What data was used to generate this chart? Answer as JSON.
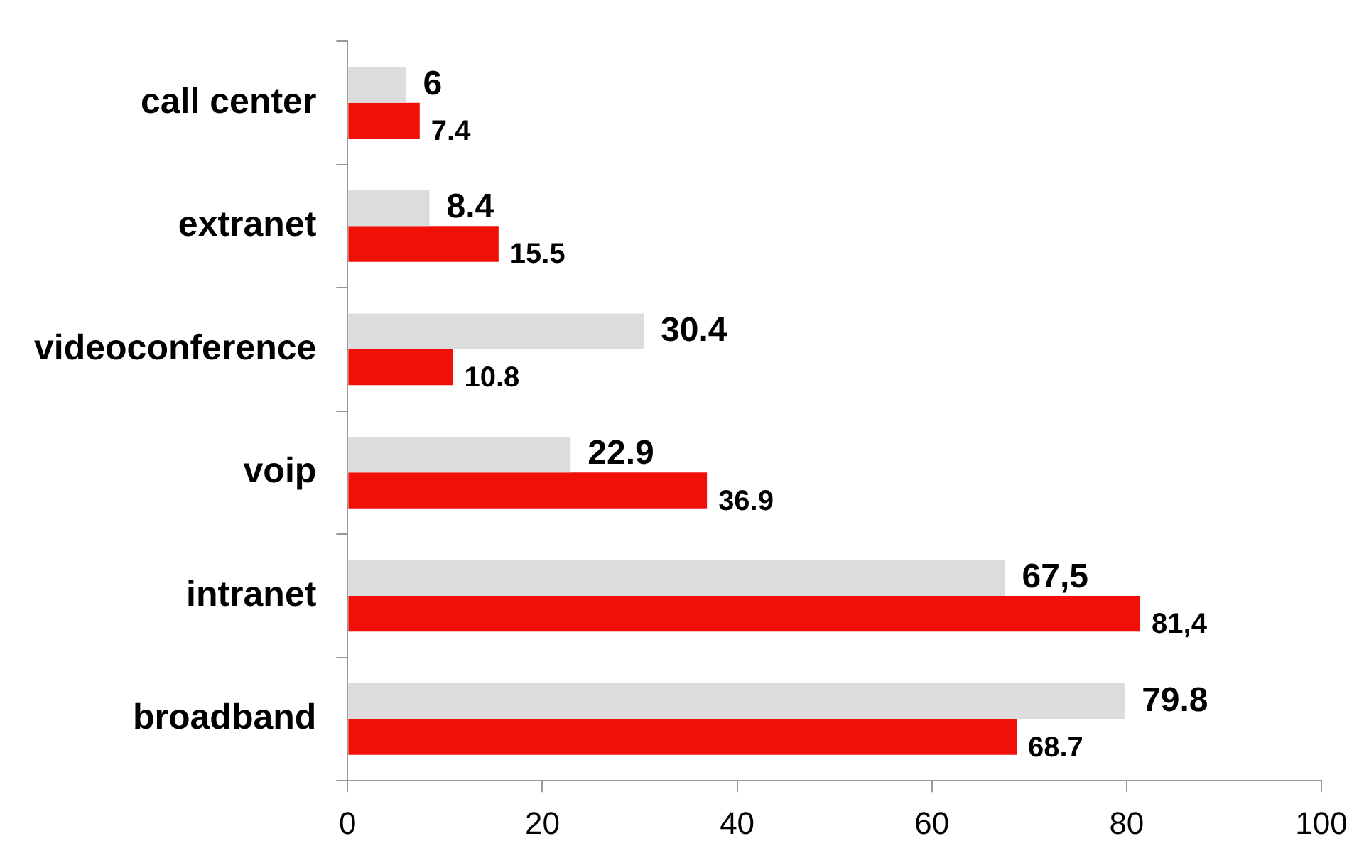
{
  "chart_data": {
    "type": "bar",
    "orientation": "horizontal",
    "categories": [
      "call center",
      "extranet",
      "videoconference",
      "voip",
      "intranet",
      "broadband"
    ],
    "series": [
      {
        "color": "#dcdcdc",
        "values": [
          6,
          8.4,
          30.4,
          22.9,
          67.5,
          79.8
        ],
        "value_labels": [
          "6",
          "8.4",
          "30.4",
          "22.9",
          "67,5",
          "79.8"
        ]
      },
      {
        "color": "#f01008",
        "values": [
          7.4,
          15.5,
          10.8,
          36.9,
          81.4,
          68.7
        ],
        "value_labels": [
          "7.4",
          "15.5",
          "10.8",
          "36.9",
          "81,4",
          "68.7"
        ]
      }
    ],
    "xlim": [
      0,
      100
    ],
    "xticks": [
      0,
      20,
      40,
      60,
      80,
      100
    ],
    "grid": false,
    "legend": false
  }
}
